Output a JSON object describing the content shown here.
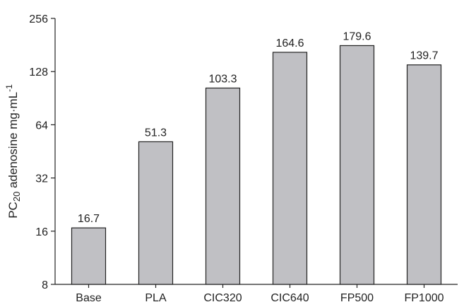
{
  "chart_data": {
    "type": "bar",
    "categories": [
      "Base",
      "PLA",
      "CIC320",
      "CIC640",
      "FP500",
      "FP1000"
    ],
    "values": [
      16.7,
      51.3,
      103.3,
      164.6,
      179.6,
      139.7
    ],
    "data_labels": [
      "16.7",
      "51.3",
      "103.3",
      "164.6",
      "179.6",
      "139.7"
    ],
    "ylabel": {
      "main": "PC",
      "sub": "20",
      "rest": " adenosine mg·mL",
      "sup": "-1"
    },
    "yscale": "log2",
    "ylim": [
      8,
      256
    ],
    "yticks": [
      8,
      16,
      32,
      64,
      128,
      256
    ],
    "ytick_labels": [
      "8",
      "16",
      "32",
      "64",
      "128",
      "256"
    ],
    "grid": false,
    "colors": {
      "bar_fill": "#c0c0c4",
      "bar_edge": "#222222",
      "text": "#222222"
    }
  }
}
